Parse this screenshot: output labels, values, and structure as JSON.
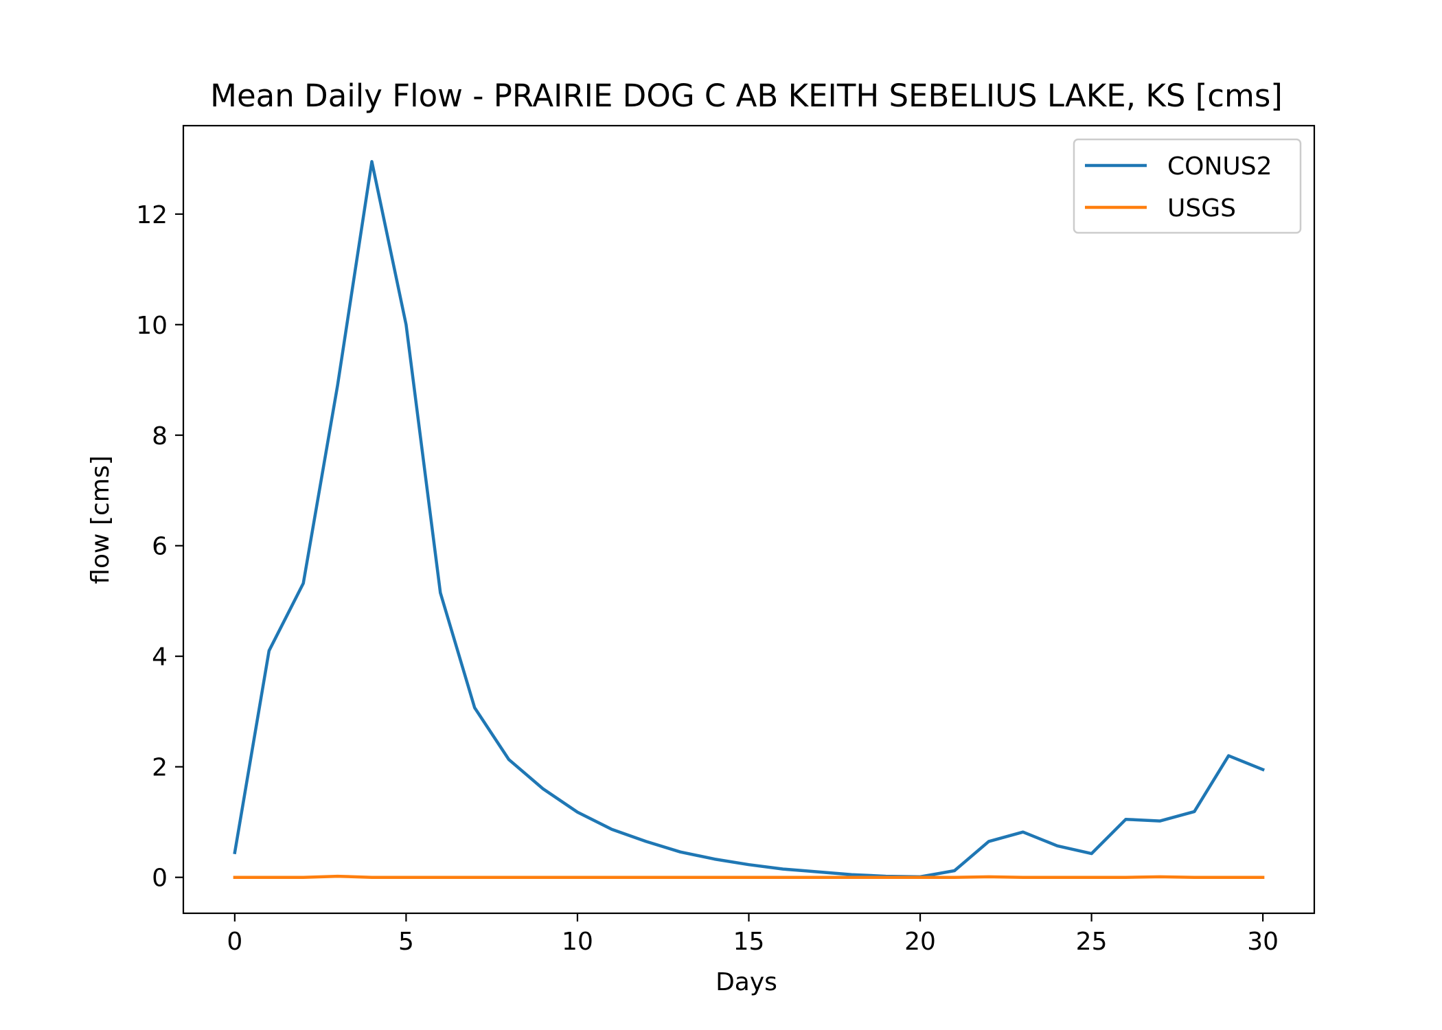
{
  "chart_data": {
    "type": "line",
    "title": "Mean Daily Flow - PRAIRIE DOG C AB KEITH SEBELIUS LAKE, KS [cms]",
    "xlabel": "Days",
    "ylabel": "flow [cms]",
    "xlim": [
      -1.5,
      31.5
    ],
    "ylim": [
      -0.65,
      13.6
    ],
    "xticks": [
      0,
      5,
      10,
      15,
      20,
      25,
      30
    ],
    "yticks": [
      0,
      2,
      4,
      6,
      8,
      10,
      12
    ],
    "grid": false,
    "legend_position": "top-right",
    "x": [
      0,
      1,
      2,
      3,
      4,
      5,
      6,
      7,
      8,
      9,
      10,
      11,
      12,
      13,
      14,
      15,
      16,
      17,
      18,
      19,
      20,
      21,
      22,
      23,
      24,
      25,
      26,
      27,
      28,
      29,
      30
    ],
    "series": [
      {
        "name": "CONUS2",
        "color": "#1f77b4",
        "values": [
          0.45,
          4.1,
          5.32,
          8.9,
          12.95,
          10.0,
          5.15,
          3.07,
          2.13,
          1.6,
          1.18,
          0.87,
          0.65,
          0.46,
          0.33,
          0.23,
          0.15,
          0.1,
          0.05,
          0.02,
          0.01,
          0.12,
          0.65,
          0.82,
          0.57,
          0.43,
          1.05,
          1.02,
          1.19,
          2.2,
          1.95
        ]
      },
      {
        "name": "USGS",
        "color": "#ff7f0e",
        "values": [
          0.0,
          0.0,
          0.0,
          0.02,
          0.0,
          0.0,
          0.0,
          0.0,
          0.0,
          0.0,
          0.0,
          0.0,
          0.0,
          0.0,
          0.0,
          0.0,
          0.0,
          0.0,
          0.0,
          0.0,
          0.0,
          0.0,
          0.01,
          0.0,
          0.0,
          0.0,
          0.0,
          0.01,
          0.0,
          0.0,
          0.0
        ]
      }
    ]
  }
}
